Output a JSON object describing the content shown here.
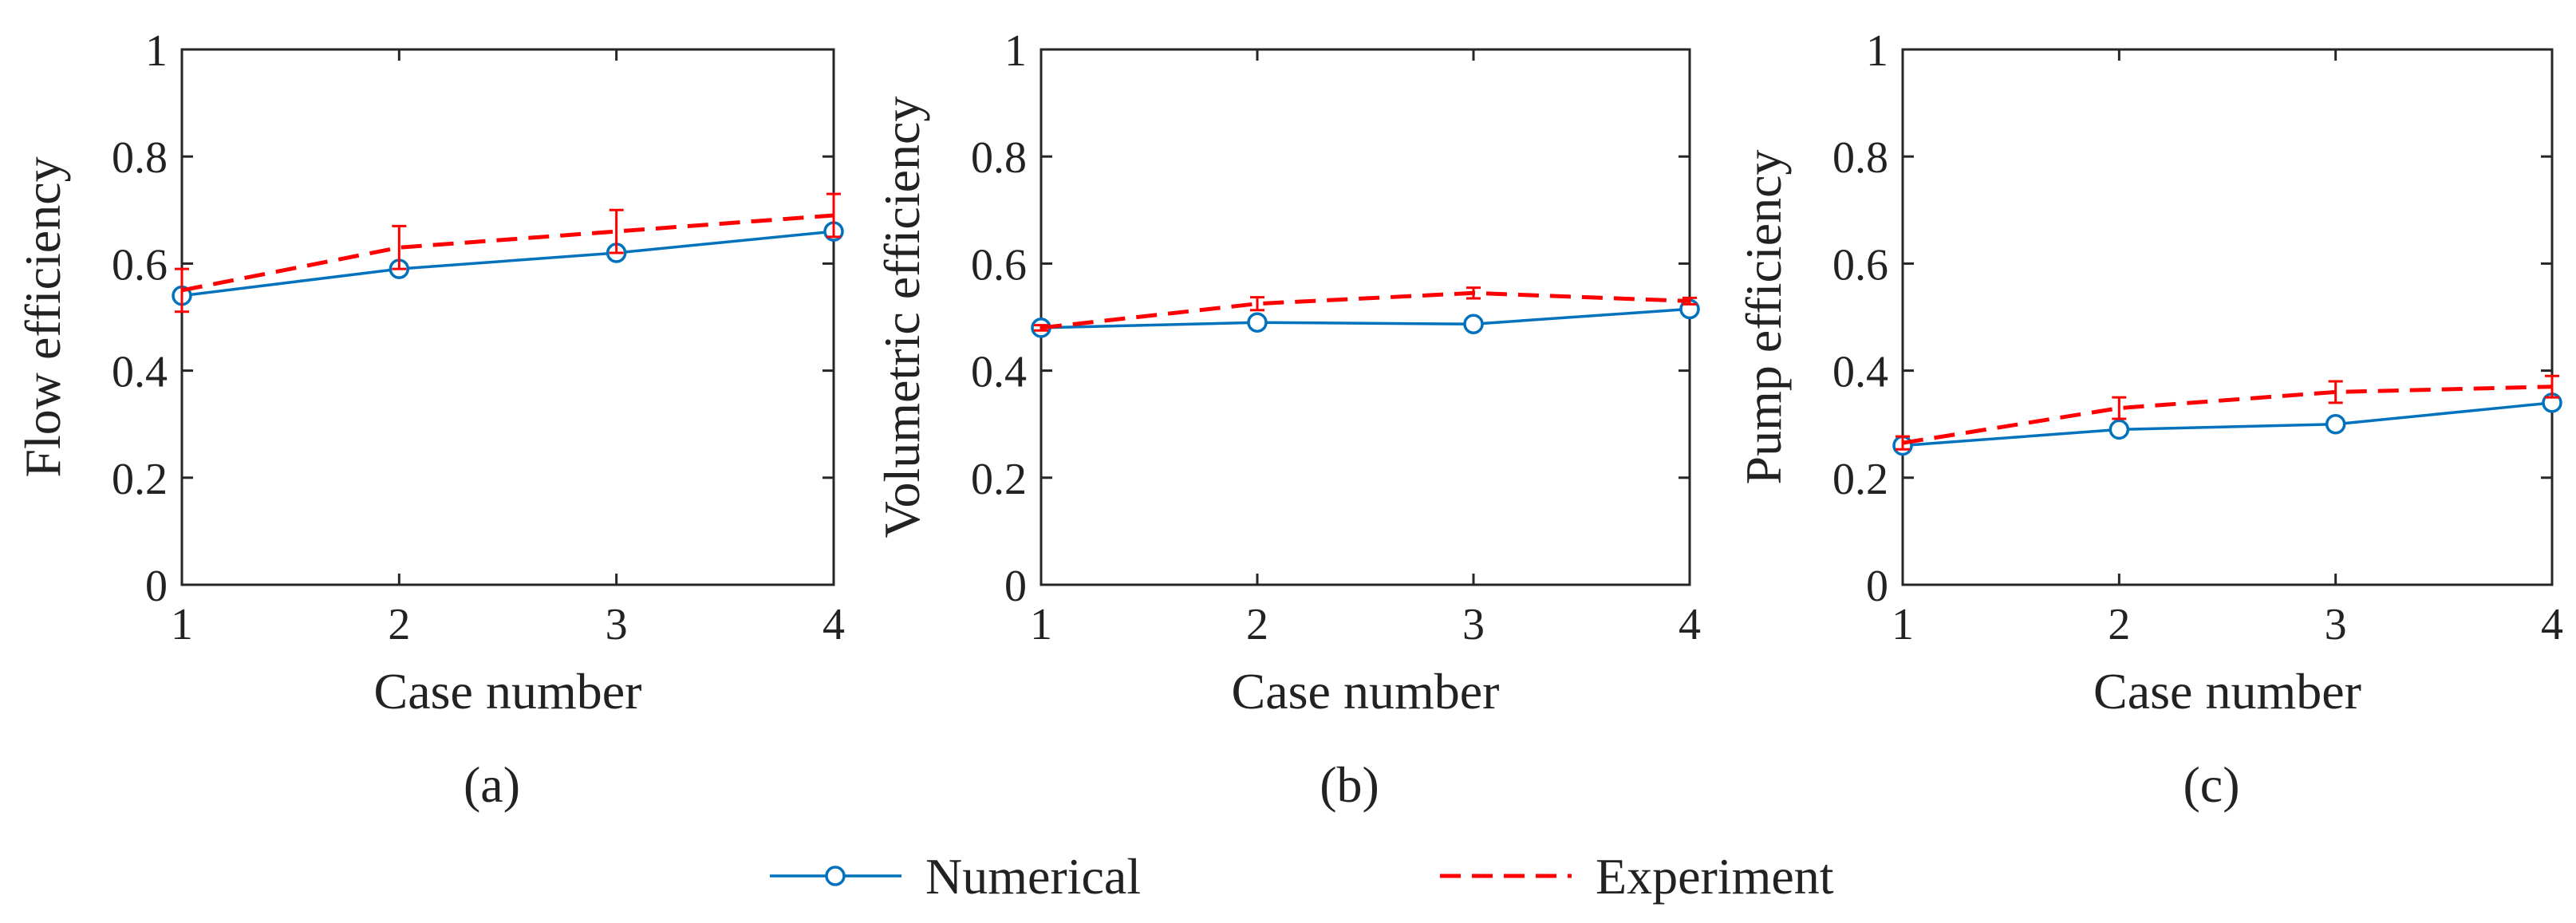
{
  "chart_data": [
    {
      "type": "line",
      "panel_label": "(a)",
      "xlabel": "Case number",
      "ylabel": "Flow efficiency",
      "x": [
        1,
        2,
        3,
        4
      ],
      "xticks": [
        "1",
        "2",
        "3",
        "4"
      ],
      "yticks": [
        "0",
        "0.2",
        "0.4",
        "0.6",
        "0.8",
        "1"
      ],
      "xlim": [
        1,
        4
      ],
      "ylim": [
        0,
        1
      ],
      "series": [
        {
          "name": "Numerical",
          "values": [
            0.54,
            0.59,
            0.62,
            0.66
          ],
          "color": "#0072BD",
          "marker": "circle",
          "style": "solid"
        },
        {
          "name": "Experiment",
          "values": [
            0.55,
            0.63,
            0.66,
            0.69
          ],
          "error": [
            0.04,
            0.04,
            0.04,
            0.04
          ],
          "color": "#FF0000",
          "style": "dashed"
        }
      ]
    },
    {
      "type": "line",
      "panel_label": "(b)",
      "xlabel": "Case number",
      "ylabel": "Volumetric efficiency",
      "x": [
        1,
        2,
        3,
        4
      ],
      "xticks": [
        "1",
        "2",
        "3",
        "4"
      ],
      "yticks": [
        "0",
        "0.2",
        "0.4",
        "0.6",
        "0.8",
        "1"
      ],
      "xlim": [
        1,
        4
      ],
      "ylim": [
        0,
        1
      ],
      "series": [
        {
          "name": "Numerical",
          "values": [
            0.48,
            0.49,
            0.487,
            0.515
          ],
          "color": "#0072BD",
          "marker": "circle",
          "style": "solid"
        },
        {
          "name": "Experiment",
          "values": [
            0.48,
            0.525,
            0.545,
            0.53
          ],
          "error": [
            0.005,
            0.012,
            0.01,
            0.006
          ],
          "color": "#FF0000",
          "style": "dashed"
        }
      ]
    },
    {
      "type": "line",
      "panel_label": "(c)",
      "xlabel": "Case number",
      "ylabel": "Pump efficiency",
      "x": [
        1,
        2,
        3,
        4
      ],
      "xticks": [
        "1",
        "2",
        "3",
        "4"
      ],
      "yticks": [
        "0",
        "0.2",
        "0.4",
        "0.6",
        "0.8",
        "1"
      ],
      "xlim": [
        1,
        4
      ],
      "ylim": [
        0,
        1
      ],
      "series": [
        {
          "name": "Numerical",
          "values": [
            0.26,
            0.29,
            0.3,
            0.34
          ],
          "color": "#0072BD",
          "marker": "circle",
          "style": "solid"
        },
        {
          "name": "Experiment",
          "values": [
            0.265,
            0.33,
            0.36,
            0.37
          ],
          "error": [
            0.012,
            0.02,
            0.02,
            0.02
          ],
          "color": "#FF0000",
          "style": "dashed"
        }
      ]
    }
  ],
  "legend": {
    "items": [
      {
        "label": "Numerical",
        "color": "#0072BD",
        "marker": "circle",
        "style": "solid"
      },
      {
        "label": "Experiment",
        "color": "#FF0000",
        "style": "dashed"
      }
    ]
  }
}
